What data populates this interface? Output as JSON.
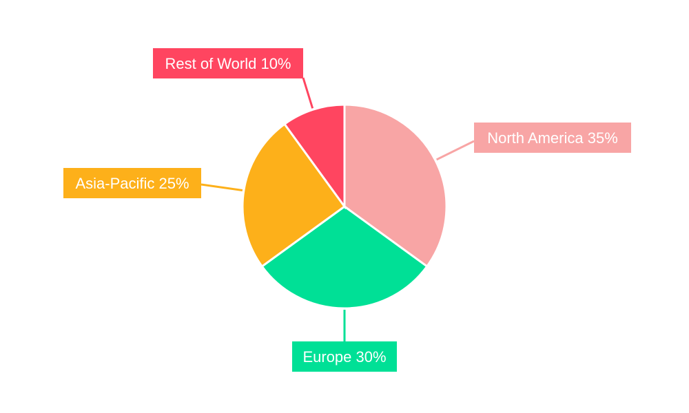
{
  "chart_data": {
    "type": "pie",
    "title": "",
    "legend": "none",
    "slices": [
      {
        "label": "North America 35%",
        "name": "North America",
        "value": 35,
        "color": "#F8A5A5"
      },
      {
        "label": "Europe 30%",
        "name": "Europe",
        "value": 30,
        "color": "#00E096"
      },
      {
        "label": "Asia-Pacific 25%",
        "name": "Asia-Pacific",
        "value": 25,
        "color": "#FDB01A"
      },
      {
        "label": "Rest of World 10%",
        "name": "Rest of World",
        "value": 10,
        "color": "#FF4560"
      }
    ]
  }
}
